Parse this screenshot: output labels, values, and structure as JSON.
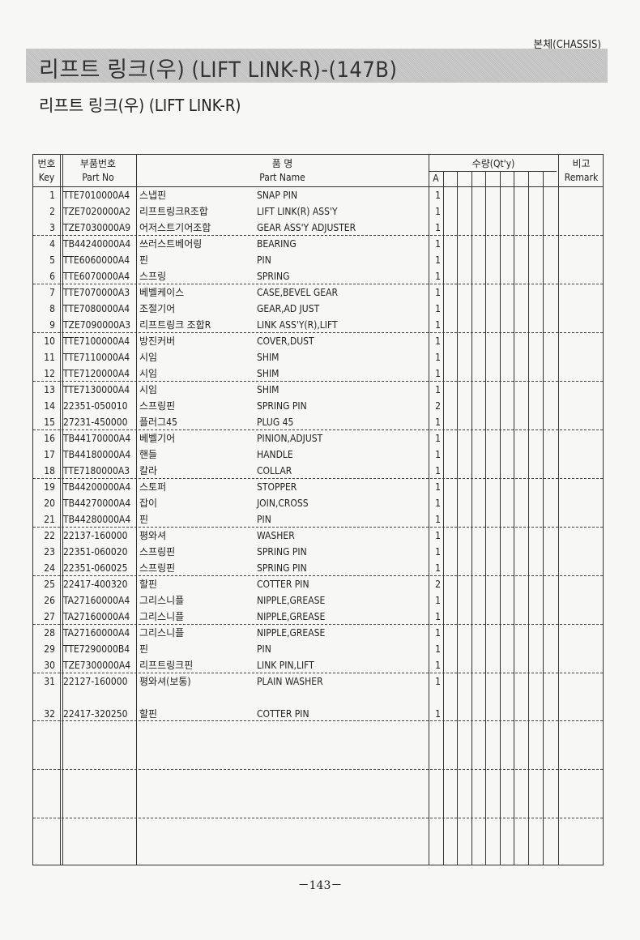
{
  "header": {
    "section": "본체(CHASSIS)",
    "title": "리프트 링크(우) (LIFT LINK-R)-(147B)",
    "subtitle": "리프트 링크(우) (LIFT LINK-R)"
  },
  "table": {
    "headers": {
      "key_ko": "번호",
      "key_en": "Key",
      "partno_ko": "부품번호",
      "partno_en": "Part No",
      "name_ko": "품 명",
      "name_en": "Part Name",
      "qty": "수량(Qt'y)",
      "qty_a": "A",
      "remark_ko": "비고",
      "remark_en": "Remark"
    },
    "rows": [
      {
        "key": "1",
        "part_no": "TTE7010000A4",
        "name_ko": "스냅핀",
        "name_en": "SNAP PIN",
        "qty": "1"
      },
      {
        "key": "2",
        "part_no": "TZE7020000A2",
        "name_ko": "리프트링크R조합",
        "name_en": "LIFT LINK(R) ASS'Y",
        "qty": "1"
      },
      {
        "key": "3",
        "part_no": "TZE7030000A9",
        "name_ko": "어저스트기어조합",
        "name_en": "GEAR ASS'Y ADJUSTER",
        "qty": "1"
      },
      {
        "key": "4",
        "part_no": "TB44240000A4",
        "name_ko": "쓰러스트베어링",
        "name_en": "BEARING",
        "qty": "1"
      },
      {
        "key": "5",
        "part_no": "TTE6060000A4",
        "name_ko": "핀",
        "name_en": "PIN",
        "qty": "1"
      },
      {
        "key": "6",
        "part_no": "TTE6070000A4",
        "name_ko": "스프링",
        "name_en": "SPRING",
        "qty": "1"
      },
      {
        "key": "7",
        "part_no": "TTE7070000A3",
        "name_ko": "베벨케이스",
        "name_en": "CASE,BEVEL GEAR",
        "qty": "1"
      },
      {
        "key": "8",
        "part_no": "TTE7080000A4",
        "name_ko": "조절기어",
        "name_en": "GEAR,AD JUST",
        "qty": "1"
      },
      {
        "key": "9",
        "part_no": "TZE7090000A3",
        "name_ko": "리프트링크 조합R",
        "name_en": "LINK ASS'Y(R),LIFT",
        "qty": "1"
      },
      {
        "key": "10",
        "part_no": "TTE7100000A4",
        "name_ko": "방진커버",
        "name_en": "COVER,DUST",
        "qty": "1"
      },
      {
        "key": "11",
        "part_no": "TTE7110000A4",
        "name_ko": "시임",
        "name_en": "SHIM",
        "qty": "1"
      },
      {
        "key": "12",
        "part_no": "TTE7120000A4",
        "name_ko": "시임",
        "name_en": "SHIM",
        "qty": "1"
      },
      {
        "key": "13",
        "part_no": "TTE7130000A4",
        "name_ko": "시임",
        "name_en": "SHIM",
        "qty": "1"
      },
      {
        "key": "14",
        "part_no": "22351-050010",
        "name_ko": "스프링핀",
        "name_en": "SPRING PIN",
        "qty": "2"
      },
      {
        "key": "15",
        "part_no": "27231-450000",
        "name_ko": "플러그45",
        "name_en": "PLUG 45",
        "qty": "1"
      },
      {
        "key": "16",
        "part_no": "TB44170000A4",
        "name_ko": "베벨기어",
        "name_en": "PINION,ADJUST",
        "qty": "1"
      },
      {
        "key": "17",
        "part_no": "TB44180000A4",
        "name_ko": "핸들",
        "name_en": "HANDLE",
        "qty": "1"
      },
      {
        "key": "18",
        "part_no": "TTE7180000A3",
        "name_ko": "칼라",
        "name_en": "COLLAR",
        "qty": "1"
      },
      {
        "key": "19",
        "part_no": "TB44200000A4",
        "name_ko": "스토퍼",
        "name_en": "STOPPER",
        "qty": "1"
      },
      {
        "key": "20",
        "part_no": "TB44270000A4",
        "name_ko": "잡이",
        "name_en": "JOIN,CROSS",
        "qty": "1"
      },
      {
        "key": "21",
        "part_no": "TB44280000A4",
        "name_ko": "핀",
        "name_en": "PIN",
        "qty": "1"
      },
      {
        "key": "22",
        "part_no": "22137-160000",
        "name_ko": "평와셔",
        "name_en": "WASHER",
        "qty": "1"
      },
      {
        "key": "23",
        "part_no": "22351-060020",
        "name_ko": "스프링핀",
        "name_en": "SPRING PIN",
        "qty": "1"
      },
      {
        "key": "24",
        "part_no": "22351-060025",
        "name_ko": "스프링핀",
        "name_en": "SPRING PIN",
        "qty": "1"
      },
      {
        "key": "25",
        "part_no": "22417-400320",
        "name_ko": "할핀",
        "name_en": "COTTER PIN",
        "qty": "2"
      },
      {
        "key": "26",
        "part_no": "TA27160000A4",
        "name_ko": "그리스니플",
        "name_en": "NIPPLE,GREASE",
        "qty": "1"
      },
      {
        "key": "27",
        "part_no": "TA27160000A4",
        "name_ko": "그리스니플",
        "name_en": "NIPPLE,GREASE",
        "qty": "1"
      },
      {
        "key": "28",
        "part_no": "TA27160000A4",
        "name_ko": "그리스니플",
        "name_en": "NIPPLE,GREASE",
        "qty": "1"
      },
      {
        "key": "29",
        "part_no": "TTE7290000B4",
        "name_ko": "핀",
        "name_en": "PIN",
        "qty": "1"
      },
      {
        "key": "30",
        "part_no": "TZE7300000A4",
        "name_ko": "리프트링크핀",
        "name_en": "LINK PIN,LIFT",
        "qty": "1"
      },
      {
        "key": "31",
        "part_no": "22127-160000",
        "name_ko": "평와셔(보통)",
        "name_en": "PLAIN WASHER",
        "qty": "1"
      },
      {
        "key": "32",
        "part_no": "22417-320250",
        "name_ko": "할핀",
        "name_en": "COTTER PIN",
        "qty": "1"
      }
    ]
  },
  "footer": {
    "page_number": "－143－"
  }
}
